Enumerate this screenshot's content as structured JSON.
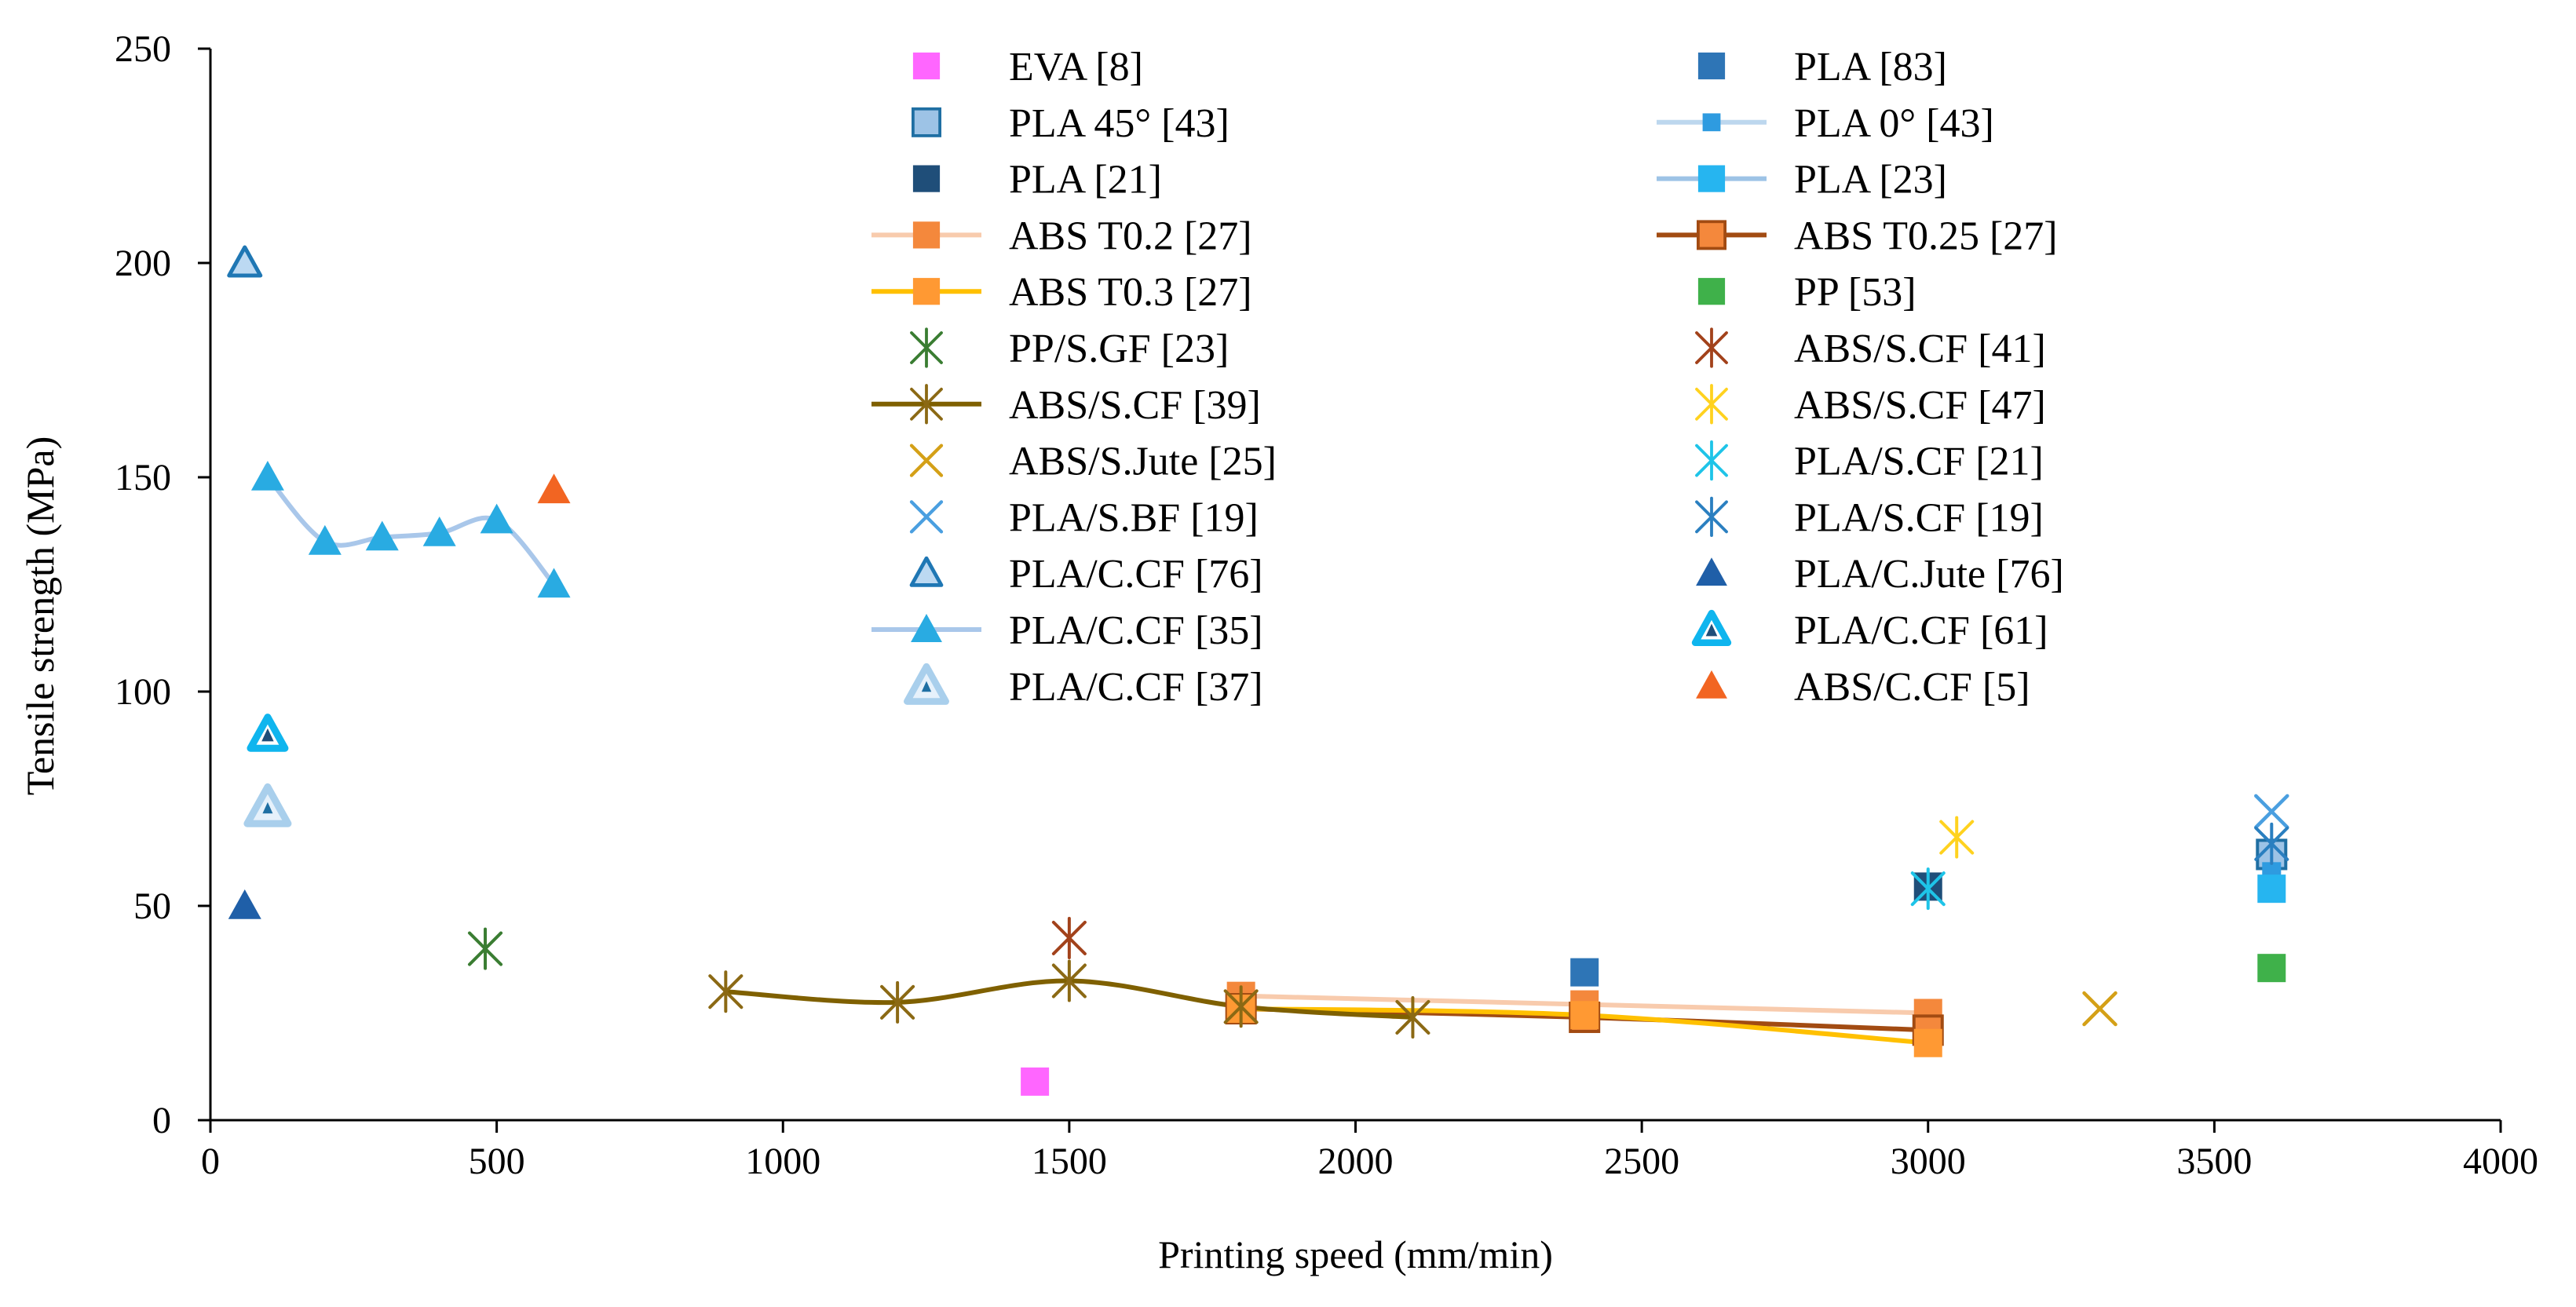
{
  "chart_data": {
    "type": "scatter",
    "title": "",
    "xlabel": "Printing speed (mm/min)",
    "ylabel": "Tensile strength (MPa)",
    "xlim": [
      0,
      4000
    ],
    "ylim": [
      0,
      250
    ],
    "xticks": [
      0,
      500,
      1000,
      1500,
      2000,
      2500,
      3000,
      3500,
      4000
    ],
    "yticks": [
      0,
      50,
      100,
      150,
      200,
      250
    ],
    "grid": false,
    "legend_position": "top-center, two columns",
    "series": [
      {
        "name": "EVA [8]",
        "color": "#ff66ff",
        "marker": "square",
        "line": false,
        "x": [
          1440
        ],
        "y": [
          9
        ]
      },
      {
        "name": "PLA [83]",
        "color": "#2e75b6",
        "marker": "square",
        "line": false,
        "x": [
          2400
        ],
        "y": [
          34.5
        ]
      },
      {
        "name": "PLA 45° [43]",
        "color": "#9dc3e6",
        "marker": "square-outline",
        "edge": "#1f6fa3",
        "line": false,
        "x": [
          3600
        ],
        "y": [
          62
        ]
      },
      {
        "name": "PLA 0° [43]",
        "color": "#2e9be0",
        "marker": "square-small",
        "line_color": "#bdd7ee",
        "line": false,
        "x": [
          3600
        ],
        "y": [
          58
        ]
      },
      {
        "name": "PLA [21]",
        "color": "#1f4e79",
        "marker": "square",
        "line": false,
        "x": [
          3000
        ],
        "y": [
          54.5
        ]
      },
      {
        "name": "PLA [23]",
        "color": "#26b5f0",
        "marker": "square",
        "line_color": "#9dc3e6",
        "line": false,
        "x": [
          3600
        ],
        "y": [
          54
        ]
      },
      {
        "name": "ABS T0.2 [27]",
        "color": "#f4883c",
        "marker": "square",
        "line_color": "#f8cbad",
        "line": true,
        "x": [
          1800,
          2400,
          3000
        ],
        "y": [
          29,
          27,
          25
        ]
      },
      {
        "name": "ABS T0.25 [27]",
        "color": "#f4883c",
        "marker": "square-outline",
        "edge": "#a24b12",
        "line_color": "#a24b12",
        "line": true,
        "x": [
          1800,
          2400,
          3000
        ],
        "y": [
          26,
          24,
          21
        ]
      },
      {
        "name": "ABS T0.3 [27]",
        "color": "#ff9933",
        "marker": "square",
        "line_color": "#ffc000",
        "line": true,
        "x": [
          1800,
          2400,
          3000
        ],
        "y": [
          26,
          24.5,
          18
        ]
      },
      {
        "name": "PP [53]",
        "color": "#3fb14a",
        "marker": "square",
        "line": false,
        "x": [
          3600
        ],
        "y": [
          35.5
        ]
      },
      {
        "name": "PP/S.GF [23]",
        "color": "#3a7d32",
        "marker": "asterisk",
        "line": false,
        "x": [
          480
        ],
        "y": [
          40
        ]
      },
      {
        "name": "ABS/S.CF [41]",
        "color": "#a2421b",
        "marker": "asterisk",
        "line": false,
        "x": [
          1500
        ],
        "y": [
          42.5
        ]
      },
      {
        "name": "ABS/S.CF [39]",
        "color": "#8b6914",
        "marker": "asterisk",
        "line_color": "#7f6000",
        "line": true,
        "x": [
          900,
          1200,
          1500,
          1800,
          2100
        ],
        "y": [
          30,
          27.5,
          32.5,
          26.5,
          24
        ]
      },
      {
        "name": "ABS/S.CF [47]",
        "color": "#ffd21f",
        "marker": "asterisk",
        "line": false,
        "x": [
          3050
        ],
        "y": [
          66
        ]
      },
      {
        "name": "ABS/S.Jute [25]",
        "color": "#d4a017",
        "marker": "x",
        "line": false,
        "x": [
          3300
        ],
        "y": [
          26
        ]
      },
      {
        "name": "PLA/S.CF [21]",
        "color": "#1ec4e8",
        "marker": "asterisk",
        "line": false,
        "x": [
          3000
        ],
        "y": [
          54
        ]
      },
      {
        "name": "PLA/S.BF [19]",
        "color": "#4a9fe0",
        "marker": "x",
        "line": false,
        "x": [
          3600
        ],
        "y": [
          72
        ]
      },
      {
        "name": "PLA/S.CF [19]",
        "color": "#2a7fc0",
        "marker": "asterisk",
        "line": false,
        "x": [
          3600
        ],
        "y": [
          64.5
        ]
      },
      {
        "name": "PLA/C.CF [76]",
        "color": "#bcd9f2",
        "marker": "triangle-outline",
        "edge": "#1f77b4",
        "line": false,
        "x": [
          60
        ],
        "y": [
          200
        ]
      },
      {
        "name": "PLA/C.Jute [76]",
        "color": "#1f5fa8",
        "marker": "triangle",
        "line": false,
        "x": [
          60
        ],
        "y": [
          50
        ]
      },
      {
        "name": "PLA/C.CF [35]",
        "color": "#29abe2",
        "marker": "triangle",
        "line_color": "#a9c7ea",
        "line": true,
        "x": [
          100,
          200,
          300,
          400,
          500,
          600
        ],
        "y": [
          150,
          135,
          136,
          137,
          140,
          125
        ]
      },
      {
        "name": "PLA/C.CF [61]",
        "color": "#0fb5ee",
        "marker": "triangle-bold",
        "line": false,
        "x": [
          100
        ],
        "y": [
          90
        ]
      },
      {
        "name": "PLA/C.CF [37]",
        "color": "#a9cfec",
        "marker": "triangle-bold-light",
        "line": false,
        "x": [
          100
        ],
        "y": [
          73
        ]
      },
      {
        "name": "ABS/C.CF [5]",
        "color": "#f26522",
        "marker": "triangle",
        "line": false,
        "x": [
          600
        ],
        "y": [
          147
        ]
      }
    ]
  }
}
